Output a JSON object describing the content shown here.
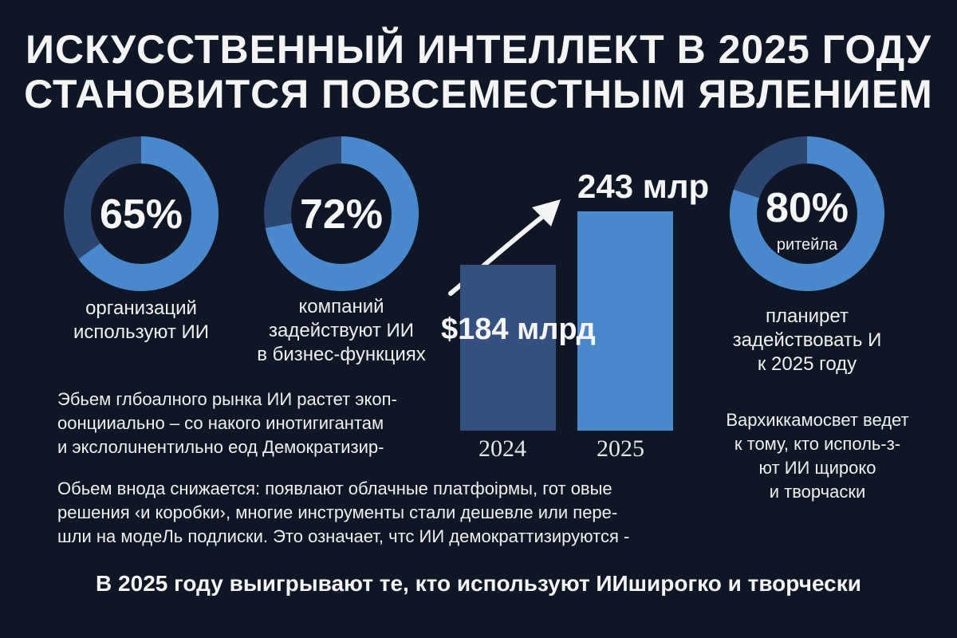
{
  "title": {
    "line1": "ИСКУССТВЕННЫЙ ИНТЕЛЛЕКТ В 2025 ГОДУ",
    "line2": "СТАНОВИТСЯ ПОВСЕМЕСТНЫМ ЯВЛЕНИЕМ"
  },
  "stats": [
    {
      "value": "65%",
      "fraction": 0.65,
      "caption": [
        "организаций",
        "используют ИИ"
      ]
    },
    {
      "value": "72%",
      "fraction": 0.72,
      "caption": [
        "компаний",
        "задействуют ИИ",
        "в бизнес-функциях"
      ]
    },
    {
      "value": "80%",
      "sub": "ритейла",
      "fraction": 0.8,
      "caption": [
        "планирет",
        "задействовать  И",
        "к 2025 году"
      ]
    }
  ],
  "chart_data": {
    "type": "bar",
    "categories": [
      "2024",
      "2025"
    ],
    "values": [
      184,
      243
    ],
    "data_labels": [
      "$184 млрд",
      "243 млр"
    ]
  },
  "paragraph1": [
    "Эбьем глбоалного рынка ИИ растет экоп-",
    "оонцииально – со накого инотигигантам",
    "и экслолuнентильно еод  Демократизир-"
  ],
  "paragraph2": [
    "Обьем внода снижается: появлают облачные платфоiрмы, гот овые",
    "решения ‹и коробки›, многие инструменты стали дешевле или пере-",
    "шли на модеЛь подлиски. Это означает, чтс ИИ демократтизируются -"
  ],
  "right_note": [
    "Вархиккамосвет ведет",
    "к тому, кто исполь-з-",
    "ют ИИ щироко",
    "и творчаски"
  ],
  "footer": "В 2025 году выигрывают те, кто используют ИИширoгко и творчески",
  "colors": {
    "background": "#0f1626",
    "ring_track": "#2d4670",
    "ring_fill": "#4a88cc",
    "bar_2024": "#34507e",
    "bar_2025": "#4a88cc"
  }
}
